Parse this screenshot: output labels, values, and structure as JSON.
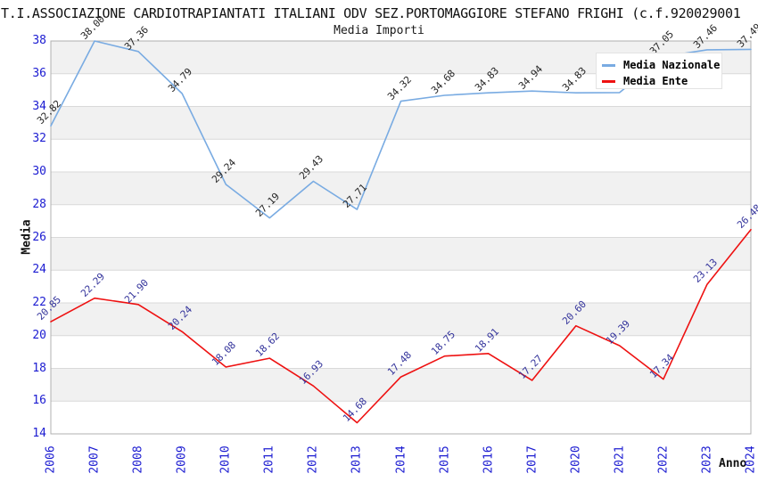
{
  "title": "T.I.ASSOCIAZIONE CARDIOTRAPIANTATI ITALIANI ODV SEZ.PORTOMAGGIORE STEFANO FRIGHI (c.f.920029001",
  "chart_data": {
    "type": "line",
    "title": "Media Importi",
    "xlabel": "Anno",
    "ylabel": "Media",
    "ylim": [
      14,
      38
    ],
    "y_ticks": [
      14,
      16,
      18,
      20,
      22,
      24,
      26,
      28,
      30,
      32,
      34,
      36,
      38
    ],
    "categories": [
      "2006",
      "2007",
      "2008",
      "2009",
      "2010",
      "2011",
      "2012",
      "2013",
      "2014",
      "2015",
      "2016",
      "2017",
      "2020",
      "2021",
      "2022",
      "2023",
      "2024"
    ],
    "series": [
      {
        "name": "Media Nazionale",
        "color": "#79ABE2",
        "label_color": "#262626",
        "values": [
          32.82,
          38.0,
          37.36,
          34.79,
          29.24,
          27.19,
          29.43,
          27.71,
          34.32,
          34.68,
          34.83,
          34.94,
          34.83,
          34.85,
          37.05,
          37.46,
          37.49
        ],
        "point_labels": [
          "32.82",
          "38.00",
          "37.36",
          "34.79",
          "29.24",
          "27.19",
          "29.43",
          "27.71",
          "34.32",
          "34.68",
          "34.83",
          "34.94",
          "34.83",
          "",
          "37.05",
          "37.46",
          "37.49"
        ]
      },
      {
        "name": "Media Ente",
        "color": "#EE1111",
        "label_color": "#33339B",
        "values": [
          20.85,
          22.29,
          21.9,
          20.24,
          18.08,
          18.62,
          16.93,
          14.68,
          17.48,
          18.75,
          18.91,
          17.27,
          20.6,
          19.39,
          17.34,
          23.13,
          26.48
        ],
        "point_labels": [
          "20.85",
          "22.29",
          "21.90",
          "20.24",
          "18.08",
          "18.62",
          "16.93",
          "14.68",
          "17.48",
          "18.75",
          "18.91",
          "17.27",
          "20.60",
          "19.39",
          "17.34",
          "23.13",
          "26.48"
        ]
      }
    ],
    "legend_position": "top-right",
    "grid": "horizontal-bands",
    "axis_tick_color": "#1b1bd1",
    "band_color": "#f1f1f1",
    "grid_line_color": "#d9d9d9",
    "plot_border_color": "#b0b0b0"
  }
}
